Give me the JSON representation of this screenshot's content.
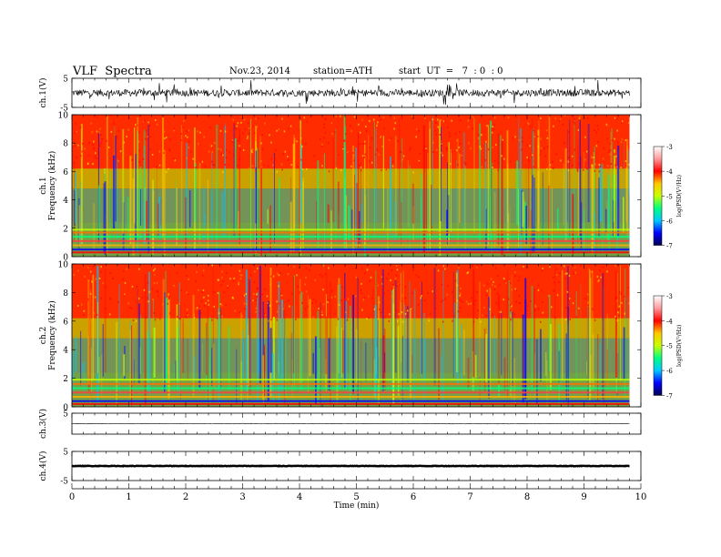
{
  "header": {
    "title": "VLF  Spectra",
    "date": "Nov.23, 2014",
    "station": "station=ATH",
    "start": "start  UT  =   7  : 0  : 0"
  },
  "colors": {
    "spectrogram_scale": [
      "#000050",
      "#0000ff",
      "#00c8ff",
      "#00ff80",
      "#c8ff00",
      "#ffc800",
      "#ff0000",
      "#ff9b9b",
      "#ffffff"
    ]
  },
  "chart_data": [
    {
      "type": "line",
      "panel": "ch1-waveform",
      "ylabel": "ch.1(V)",
      "ylim": [
        -5,
        5
      ],
      "yticks": [
        5,
        -5
      ],
      "xlim": [
        0,
        10
      ],
      "x_extent_min": 9.8,
      "baseline_v": 0.0,
      "amplitude_v": 1.2
    },
    {
      "type": "heatmap",
      "panel": "ch1-spectrogram",
      "ylabel": "ch.1\nFrequency  (kHz)",
      "ylim": [
        0,
        10
      ],
      "yticks": [
        0,
        2,
        4,
        6,
        8,
        10
      ],
      "xlim": [
        0,
        10
      ],
      "x_extent_min": 9.8,
      "colorbar": {
        "label": "log(PSD(V²/Hz)",
        "range": [
          -7,
          -3
        ],
        "ticks": [
          -3,
          -4,
          -5,
          -6,
          -7
        ]
      },
      "bands_kHz": [
        0.3,
        0.5,
        0.8,
        1.1,
        1.4,
        1.7,
        1.9
      ]
    },
    {
      "type": "heatmap",
      "panel": "ch2-spectrogram",
      "ylabel": "ch.2\nFrequency  (kHz)",
      "ylim": [
        0,
        10
      ],
      "yticks": [
        0,
        2,
        4,
        6,
        8,
        10
      ],
      "xlim": [
        0,
        10
      ],
      "x_extent_min": 9.8,
      "colorbar": {
        "label": "log(PSD(V²/Hz)",
        "range": [
          -7,
          -3
        ],
        "ticks": [
          -3,
          -4,
          -5,
          -6,
          -7
        ]
      },
      "bands_kHz": [
        0.2,
        0.4,
        0.7,
        1.0,
        1.3,
        1.6,
        1.9
      ]
    },
    {
      "type": "line",
      "panel": "ch3-waveform",
      "ylabel": "ch.3(V)",
      "ylim": [
        -5,
        5
      ],
      "yticks": [
        5
      ],
      "xlim": [
        0,
        10
      ],
      "x_extent_min": 9.8,
      "baseline_v": 0.0,
      "amplitude_v": 0.15
    },
    {
      "type": "line",
      "panel": "ch4-waveform",
      "ylabel": "ch.4(V)",
      "ylim": [
        -5,
        5
      ],
      "yticks": [
        5,
        -5
      ],
      "xlim": [
        0,
        10
      ],
      "x_extent_min": 9.8,
      "baseline_v": 0.0,
      "amplitude_v": 0.08
    }
  ],
  "xaxis": {
    "label": "Time  (min)",
    "ticks": [
      0,
      1,
      2,
      3,
      4,
      5,
      6,
      7,
      8,
      9,
      10
    ]
  }
}
